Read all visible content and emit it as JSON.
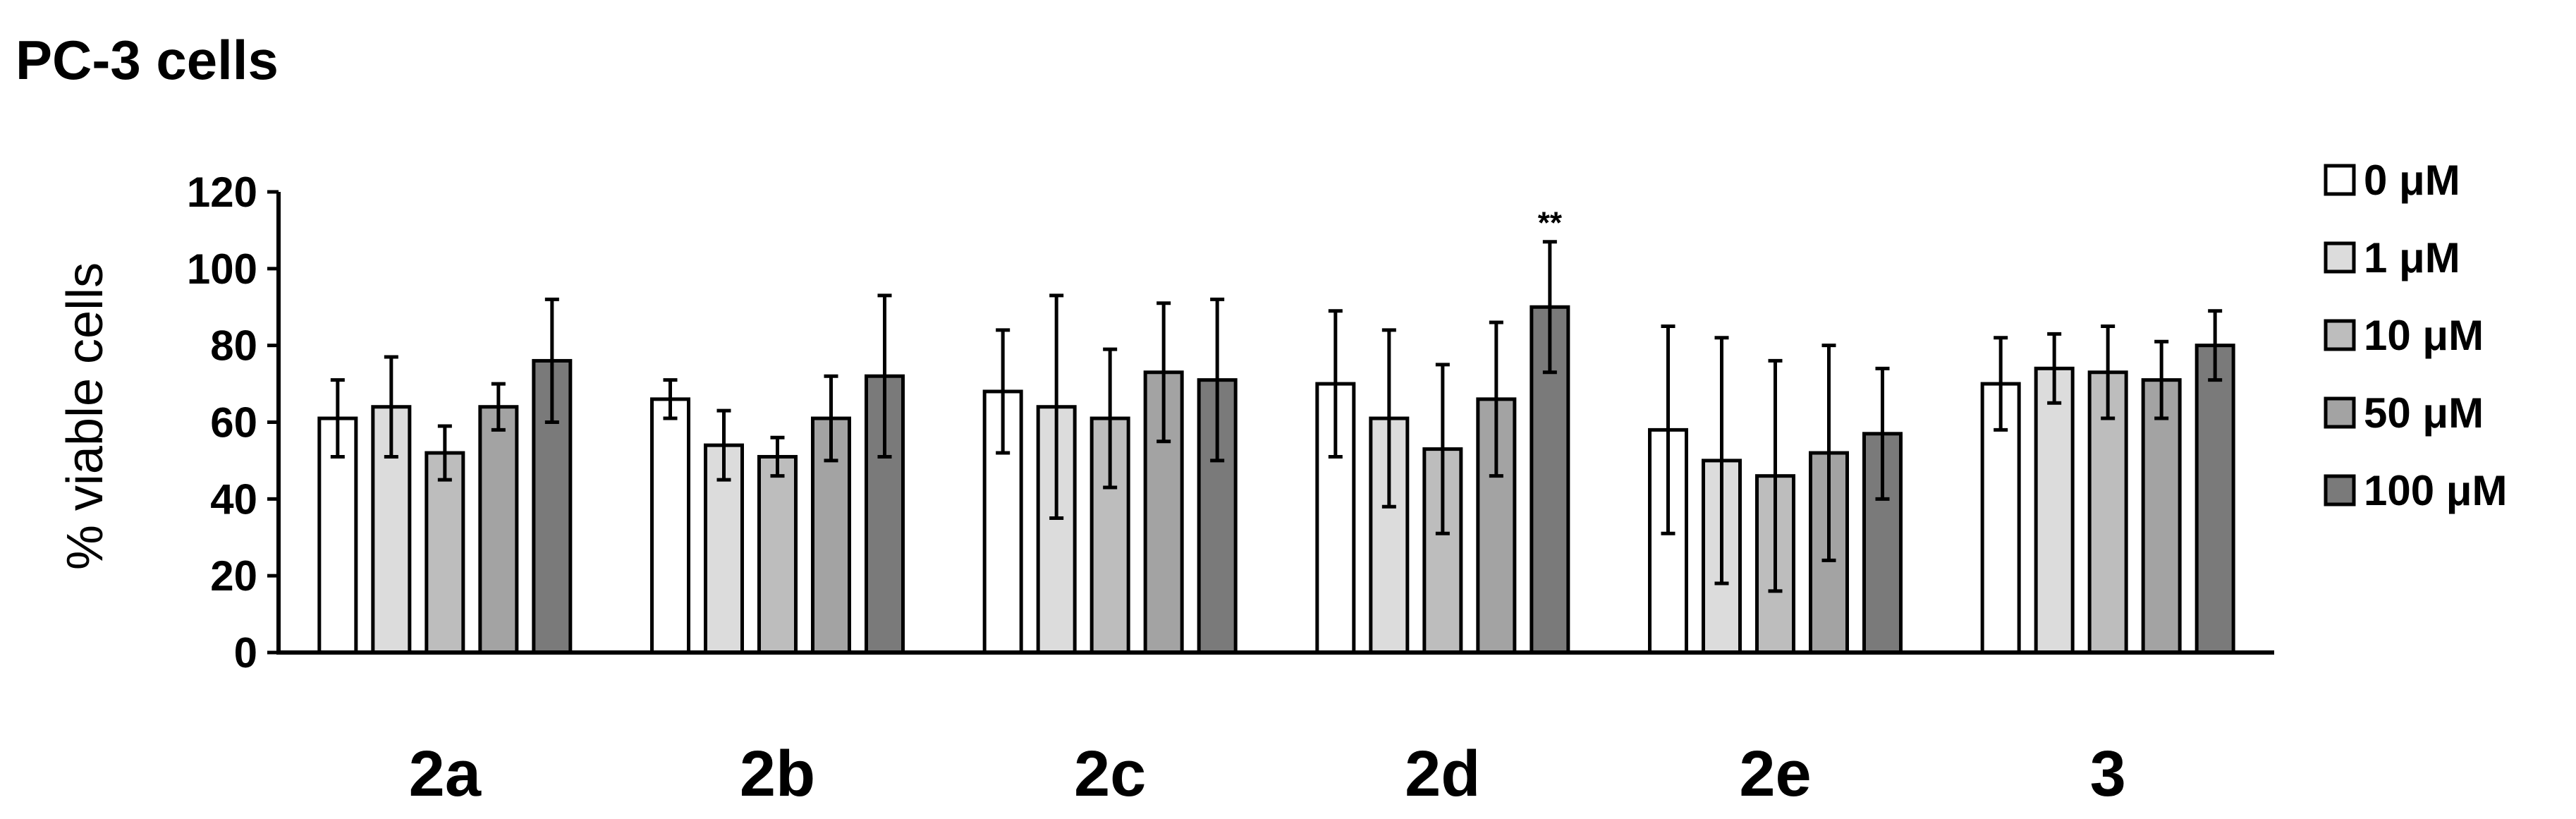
{
  "chart_data": {
    "type": "bar",
    "title": "PC-3 cells",
    "ylabel": "% viable cells",
    "xlabel": "",
    "ylim": [
      0,
      120
    ],
    "yticks": [
      0,
      20,
      40,
      60,
      80,
      100,
      120
    ],
    "categories": [
      "2a",
      "2b",
      "2c",
      "2d",
      "2e",
      "3"
    ],
    "legend_position": "right",
    "series": [
      {
        "name": "0 μM",
        "color": "#ffffff",
        "values": [
          61,
          66,
          68,
          70,
          58,
          70
        ],
        "errors": [
          10,
          5,
          16,
          19,
          27,
          12
        ]
      },
      {
        "name": "1 μM",
        "color": "#dcdcdc",
        "values": [
          64,
          54,
          64,
          61,
          50,
          74
        ],
        "errors": [
          13,
          9,
          29,
          23,
          32,
          9
        ]
      },
      {
        "name": "10 μM",
        "color": "#bdbdbd",
        "values": [
          52,
          51,
          61,
          53,
          46,
          73
        ],
        "errors": [
          7,
          5,
          18,
          22,
          30,
          12
        ]
      },
      {
        "name": "50 μM",
        "color": "#a3a3a3",
        "values": [
          64,
          61,
          73,
          66,
          52,
          71
        ],
        "errors": [
          6,
          11,
          18,
          20,
          28,
          10
        ]
      },
      {
        "name": "100 μM",
        "color": "#7a7a7a",
        "values": [
          76,
          72,
          71,
          90,
          57,
          80
        ],
        "errors": [
          16,
          21,
          21,
          17,
          17,
          9
        ]
      }
    ],
    "annotations": [
      {
        "category": "2d",
        "series": "100 μM",
        "text": "**"
      }
    ]
  }
}
